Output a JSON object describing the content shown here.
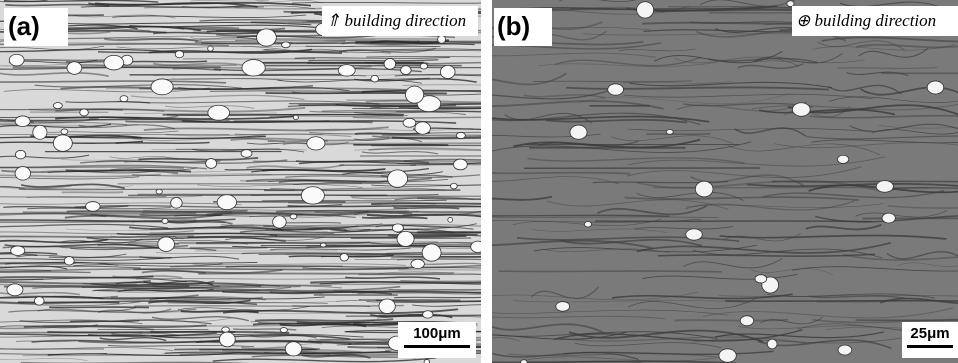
{
  "panels": [
    {
      "label": "(a)",
      "annotation": "⇑ building direction",
      "scale_bar": "100μm"
    },
    {
      "label": "(b)",
      "annotation": "⊕ building direction",
      "scale_bar": "25μm"
    }
  ]
}
